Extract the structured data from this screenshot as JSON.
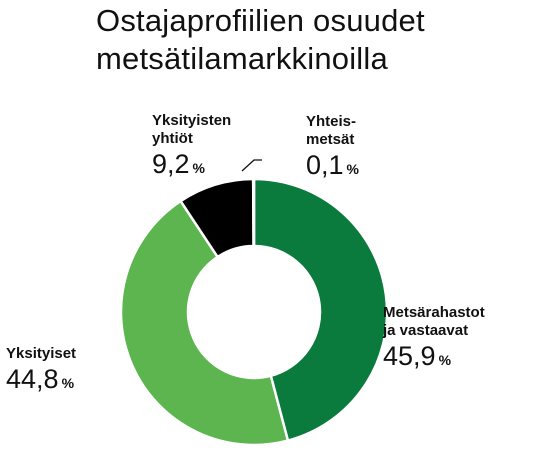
{
  "title_line1": "Ostajaprofiilien osuudet",
  "title_line2": "metsätilamarkkinoilla",
  "chart_data": {
    "type": "pie",
    "donut": true,
    "title": "Ostajaprofiilien osuudet metsätilamarkkinoilla",
    "unit": "%",
    "slices": [
      {
        "name_line1": "Metsärahastot",
        "name_line2": "ja vastaavat",
        "value": 45.9,
        "value_label": "45,9",
        "color": "#0a7a3d"
      },
      {
        "name_line1": "Yksityiset",
        "name_line2": "",
        "value": 44.8,
        "value_label": "44,8",
        "color": "#5cb54f"
      },
      {
        "name_line1": "Yksityisten",
        "name_line2": "yhtiöt",
        "value": 9.2,
        "value_label": "9,2",
        "color": "#000000"
      },
      {
        "name_line1": "Yhteis-",
        "name_line2": "metsät",
        "value": 0.1,
        "value_label": "0,1",
        "color": "#d9d9d9"
      }
    ]
  }
}
